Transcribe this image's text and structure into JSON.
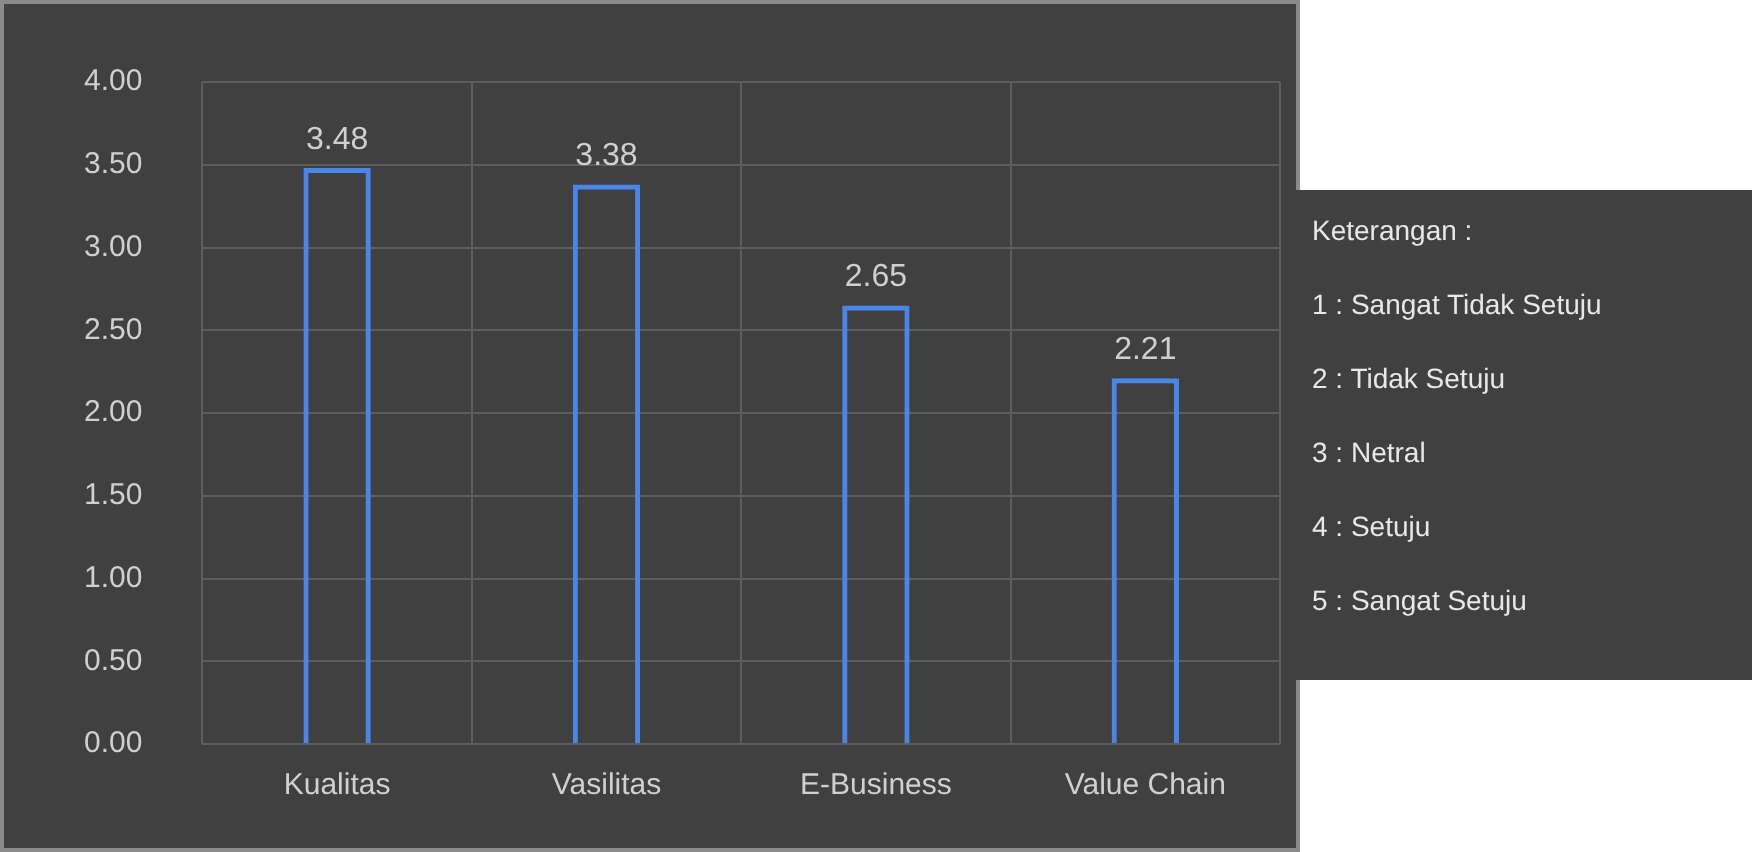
{
  "chart_data": {
    "type": "bar",
    "categories": [
      "Kualitas",
      "Vasilitas",
      "E-Business",
      "Value Chain"
    ],
    "values": [
      3.48,
      3.38,
      2.65,
      2.21
    ],
    "color": "#4a86e8",
    "ylim": [
      0,
      4
    ],
    "yticks": [
      {
        "value": 0,
        "label": "0.00"
      },
      {
        "value": 0.5,
        "label": "0.50"
      },
      {
        "value": 1,
        "label": "1.00"
      },
      {
        "value": 1.5,
        "label": "1.50"
      },
      {
        "value": 2,
        "label": "2.00"
      },
      {
        "value": 2.5,
        "label": "2.50"
      },
      {
        "value": 3,
        "label": "3.00"
      },
      {
        "value": 3.5,
        "label": "3.50"
      },
      {
        "value": 4,
        "label": "4.00"
      }
    ],
    "grid": true,
    "data_labels": true,
    "annotations": [
      "Keterangan :",
      "1 : Sangat Tidak Setuju",
      "2 : Tidak Setuju",
      "3 : Netral",
      "4 : Setuju",
      "5 : Sangat Setuju"
    ]
  }
}
